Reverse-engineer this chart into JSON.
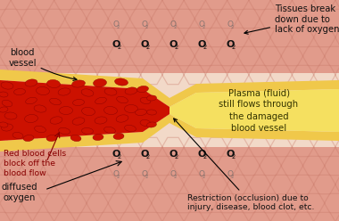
{
  "bg_color": "#f2d9c8",
  "tissue_top_color1": "#d9857a",
  "tissue_top_color2": "#e8a898",
  "vessel_wall_color": "#f0c84a",
  "vessel_inner_color": "#f5e070",
  "blood_red": "#cc1100",
  "blood_dark": "#880000",
  "plasma_color": "#f5e060",
  "hex_color": "#c87868",
  "fig_width": 3.8,
  "fig_height": 2.48,
  "dpi": 100,
  "labels": {
    "blood_vessel": "blood\nvessel",
    "tissues_break": "Tissues break\ndown due to\nlack of oxygen",
    "plasma": "Plasma (fluid)\nstill flows through\nthe damaged\nblood vessel",
    "red_blood_cells": "Red blood cells\nblock off the\nblood flow",
    "diffused_oxygen": "diffused\noxygen",
    "restriction": "Restriction (occlusion) due to\ninjury, disease, blood clot, etc."
  }
}
